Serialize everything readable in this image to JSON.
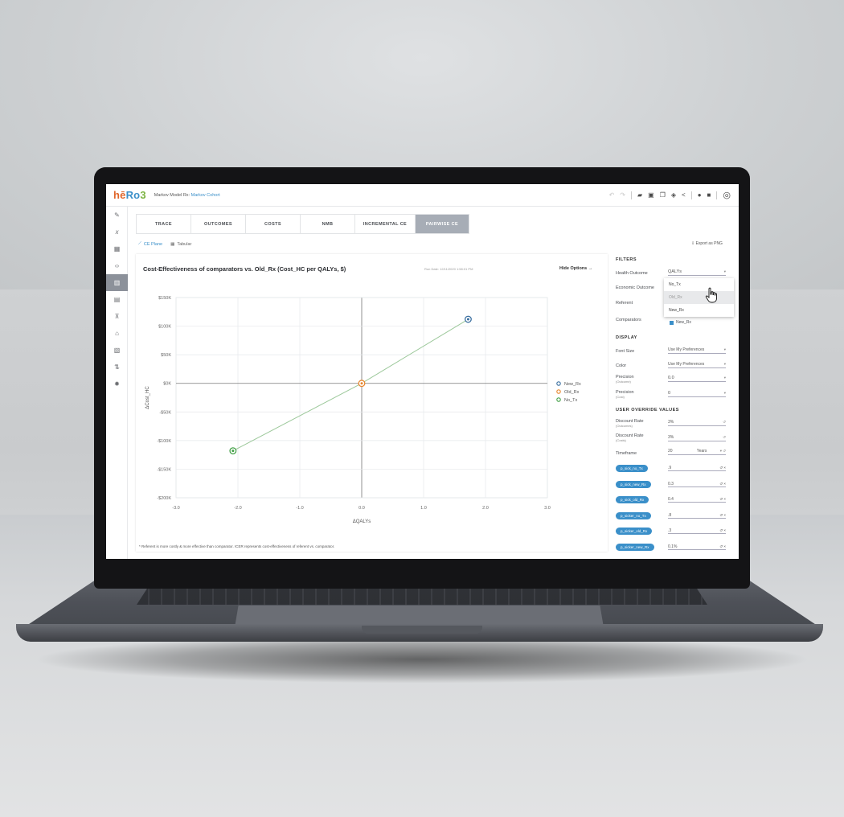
{
  "app": {
    "logo": [
      "hē",
      "Ro",
      "3"
    ],
    "model_prefix": "Markov Model Rx: ",
    "model_name": "Markov Cohort"
  },
  "header_icons": [
    "undo-icon",
    "redo-icon",
    "folder-icon",
    "save-icon",
    "copy-icon",
    "layers-icon",
    "share-icon",
    "info-icon",
    "help-icon",
    "user-icon"
  ],
  "rail": {
    "items": [
      {
        "name": "pencil-icon",
        "glyph": "✎"
      },
      {
        "name": "variable-icon",
        "glyph": "𝑥"
      },
      {
        "name": "table-icon",
        "glyph": "▦"
      },
      {
        "name": "code-icon",
        "glyph": "‹›"
      },
      {
        "name": "results-icon",
        "glyph": "▥",
        "active": true
      },
      {
        "name": "grid-icon",
        "glyph": "▤"
      },
      {
        "name": "filter-icon",
        "glyph": "⊼"
      },
      {
        "name": "psa-icon",
        "glyph": "⌂"
      },
      {
        "name": "evpi-icon",
        "glyph": "▧"
      },
      {
        "name": "sort-icon",
        "glyph": "⇅"
      },
      {
        "name": "settings-icon",
        "glyph": "✹"
      }
    ]
  },
  "tabs": [
    {
      "label": "TRACE"
    },
    {
      "label": "OUTCOMES"
    },
    {
      "label": "COSTS"
    },
    {
      "label": "NMB"
    },
    {
      "label": "INCREMENTAL CE",
      "wide": true
    },
    {
      "label": "PAIRWISE CE",
      "active": true
    }
  ],
  "subtabs": {
    "ce_plane": "CE Plane",
    "tabular": "Tabular"
  },
  "export_label": "Export as PNG",
  "chart_header": {
    "hide_options": "Hide Options →",
    "run_date": "Run Date: 12/11/2020 1:58:01 PM"
  },
  "footnote": "* Referent is more costly & more effective than comparator. ICER represents cost-effectiveness of referent vs. comparator.",
  "chart_data": {
    "type": "scatter",
    "title": "Cost-Effectiveness of comparators vs. Old_Rx (Cost_HC per QALYs, $)",
    "xlabel": "ΔQALYs",
    "ylabel": "ΔCost_HC",
    "xlim": [
      -3.0,
      3.0
    ],
    "ylim": [
      -200000,
      150000
    ],
    "xticks": [
      -3.0,
      -2.0,
      -1.0,
      0.0,
      1.0,
      2.0,
      3.0
    ],
    "xtick_labels": [
      "-3.0",
      "-2.0",
      "-1.0",
      "0.0",
      "1.0",
      "2.0",
      "3.0"
    ],
    "yticks": [
      150000,
      100000,
      50000,
      0,
      -50000,
      -100000,
      -150000,
      -200000
    ],
    "ytick_labels": [
      "$150K",
      "$100K",
      "$50K",
      "$0K",
      "-$50K",
      "-$100K",
      "-$150K",
      "-$200K"
    ],
    "grid": true,
    "legend_position": "right",
    "series": [
      {
        "name": "New_Rx",
        "x": 1.72,
        "y": 112000,
        "color": "#3a6fa0"
      },
      {
        "name": "Old_Rx",
        "x": 0.0,
        "y": 0,
        "color": "#e8872e"
      },
      {
        "name": "No_Tx",
        "x": -2.08,
        "y": -118000,
        "color": "#43a047"
      }
    ],
    "line_color": "#9cc89a"
  },
  "panel": {
    "filters_heading": "FILTERS",
    "health_outcome_label": "Health Outcome",
    "health_outcome_value": "QALYs",
    "economic_outcome_label": "Economic Outcome",
    "referent_label": "Referent",
    "comparators_label": "Comparators",
    "comparator_checked": "New_Rx",
    "dropdown_options": [
      "No_Tx",
      "Old_Rx",
      "New_Rx"
    ],
    "display_heading": "DISPLAY",
    "font_size_label": "Font Size",
    "font_size_value": "Use My Preferences",
    "color_label": "Color",
    "color_value": "Use My Preferences",
    "precision_outcome_label": "Precision",
    "precision_outcome_sub": "(Outcome)",
    "precision_outcome_value": "0.0",
    "precision_cost_label": "Precision",
    "precision_cost_sub": "(Cost)",
    "precision_cost_value": "0",
    "override_heading": "USER OVERRIDE VALUES",
    "dr_outcomes_label": "Discount Rate",
    "dr_outcomes_sub": "(Outcomes)",
    "dr_outcomes_value": "3%",
    "dr_costs_label": "Discount Rate",
    "dr_costs_sub": "(Costs)",
    "dr_costs_value": "3%",
    "timeframe_label": "Timeframe",
    "timeframe_value": "20",
    "timeframe_unit": "Years",
    "params": [
      {
        "name": "p_sick_no_Tx",
        "value": ".9"
      },
      {
        "name": "p_sick_new_Rx",
        "value": "0.3"
      },
      {
        "name": "p_sick_old_Rx",
        "value": "0.4"
      },
      {
        "name": "p_sicker_no_Tx",
        "value": ".8"
      },
      {
        "name": "p_sicker_old_Rx",
        "value": ".3"
      },
      {
        "name": "p_sicker_new_Rx",
        "value": "0.1%"
      }
    ]
  }
}
